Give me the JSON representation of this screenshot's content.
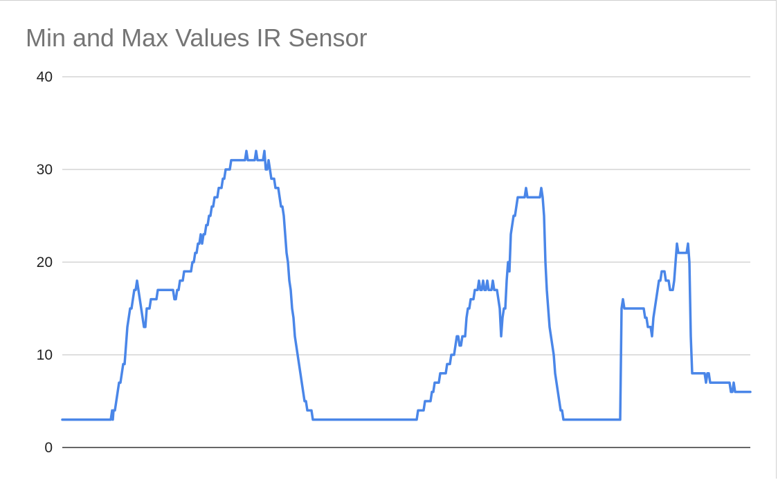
{
  "chart_data": {
    "type": "line",
    "title": "Min and Max Values IR Sensor",
    "xlabel": "",
    "ylabel": "",
    "ylim": [
      0,
      40
    ],
    "yticks": [
      "0",
      "10",
      "20",
      "30",
      "40"
    ],
    "grid": true,
    "legend": "none",
    "line_color": "#4a86e8",
    "series": [
      {
        "points": [
          [
            0,
            3
          ],
          [
            70,
            3
          ],
          [
            72,
            4
          ],
          [
            73,
            3
          ],
          [
            74,
            4
          ],
          [
            76,
            4
          ],
          [
            78,
            5
          ],
          [
            80,
            6
          ],
          [
            82,
            7
          ],
          [
            84,
            7
          ],
          [
            86,
            8
          ],
          [
            88,
            9
          ],
          [
            90,
            9
          ],
          [
            92,
            11
          ],
          [
            94,
            13
          ],
          [
            96,
            14
          ],
          [
            98,
            15
          ],
          [
            100,
            15
          ],
          [
            102,
            16
          ],
          [
            104,
            17
          ],
          [
            106,
            17
          ],
          [
            108,
            18
          ],
          [
            110,
            17
          ],
          [
            112,
            16
          ],
          [
            114,
            15
          ],
          [
            116,
            14
          ],
          [
            118,
            13
          ],
          [
            120,
            13
          ],
          [
            122,
            15
          ],
          [
            124,
            15
          ],
          [
            126,
            15
          ],
          [
            128,
            16
          ],
          [
            130,
            16
          ],
          [
            132,
            16
          ],
          [
            134,
            16
          ],
          [
            136,
            16
          ],
          [
            138,
            17
          ],
          [
            140,
            17
          ],
          [
            142,
            17
          ],
          [
            146,
            17
          ],
          [
            150,
            17
          ],
          [
            154,
            17
          ],
          [
            158,
            17
          ],
          [
            160,
            17
          ],
          [
            162,
            16
          ],
          [
            164,
            16
          ],
          [
            166,
            17
          ],
          [
            168,
            17
          ],
          [
            170,
            18
          ],
          [
            172,
            18
          ],
          [
            174,
            18
          ],
          [
            176,
            19
          ],
          [
            178,
            19
          ],
          [
            180,
            19
          ],
          [
            182,
            19
          ],
          [
            184,
            19
          ],
          [
            186,
            19
          ],
          [
            188,
            20
          ],
          [
            190,
            20
          ],
          [
            192,
            21
          ],
          [
            194,
            21
          ],
          [
            196,
            22
          ],
          [
            198,
            22
          ],
          [
            200,
            23
          ],
          [
            202,
            22
          ],
          [
            204,
            23
          ],
          [
            206,
            23
          ],
          [
            208,
            24
          ],
          [
            210,
            24
          ],
          [
            212,
            25
          ],
          [
            214,
            25
          ],
          [
            216,
            26
          ],
          [
            218,
            26
          ],
          [
            220,
            27
          ],
          [
            222,
            27
          ],
          [
            224,
            27
          ],
          [
            226,
            28
          ],
          [
            228,
            28
          ],
          [
            230,
            28
          ],
          [
            232,
            29
          ],
          [
            234,
            29
          ],
          [
            236,
            30
          ],
          [
            238,
            30
          ],
          [
            240,
            30
          ],
          [
            242,
            30
          ],
          [
            244,
            31
          ],
          [
            246,
            31
          ],
          [
            250,
            31
          ],
          [
            254,
            31
          ],
          [
            258,
            31
          ],
          [
            264,
            31
          ],
          [
            266,
            32
          ],
          [
            268,
            31
          ],
          [
            270,
            31
          ],
          [
            272,
            31
          ],
          [
            274,
            31
          ],
          [
            276,
            31
          ],
          [
            278,
            31
          ],
          [
            280,
            32
          ],
          [
            282,
            31
          ],
          [
            284,
            31
          ],
          [
            286,
            31
          ],
          [
            288,
            31
          ],
          [
            290,
            31
          ],
          [
            292,
            32
          ],
          [
            294,
            30
          ],
          [
            296,
            30
          ],
          [
            298,
            31
          ],
          [
            300,
            30
          ],
          [
            302,
            29
          ],
          [
            304,
            29
          ],
          [
            306,
            29
          ],
          [
            308,
            28
          ],
          [
            310,
            28
          ],
          [
            312,
            28
          ],
          [
            314,
            27
          ],
          [
            316,
            26
          ],
          [
            318,
            26
          ],
          [
            320,
            25
          ],
          [
            322,
            23
          ],
          [
            324,
            21
          ],
          [
            326,
            20
          ],
          [
            328,
            18
          ],
          [
            330,
            17
          ],
          [
            332,
            15
          ],
          [
            334,
            14
          ],
          [
            336,
            12
          ],
          [
            338,
            11
          ],
          [
            340,
            10
          ],
          [
            342,
            9
          ],
          [
            344,
            8
          ],
          [
            346,
            7
          ],
          [
            348,
            6
          ],
          [
            350,
            5
          ],
          [
            352,
            5
          ],
          [
            354,
            4
          ],
          [
            356,
            4
          ],
          [
            358,
            4
          ],
          [
            360,
            4
          ],
          [
            362,
            3
          ],
          [
            364,
            3
          ],
          [
            380,
            3
          ],
          [
            420,
            3
          ],
          [
            460,
            3
          ],
          [
            500,
            3
          ],
          [
            512,
            3
          ],
          [
            514,
            4
          ],
          [
            516,
            4
          ],
          [
            518,
            4
          ],
          [
            520,
            4
          ],
          [
            522,
            4
          ],
          [
            524,
            5
          ],
          [
            526,
            5
          ],
          [
            528,
            5
          ],
          [
            530,
            5
          ],
          [
            532,
            5
          ],
          [
            534,
            6
          ],
          [
            536,
            6
          ],
          [
            538,
            7
          ],
          [
            540,
            7
          ],
          [
            542,
            7
          ],
          [
            544,
            7
          ],
          [
            546,
            8
          ],
          [
            548,
            8
          ],
          [
            550,
            8
          ],
          [
            552,
            8
          ],
          [
            554,
            8
          ],
          [
            556,
            9
          ],
          [
            558,
            9
          ],
          [
            560,
            9
          ],
          [
            562,
            10
          ],
          [
            564,
            10
          ],
          [
            566,
            10
          ],
          [
            568,
            11
          ],
          [
            570,
            12
          ],
          [
            572,
            12
          ],
          [
            574,
            11
          ],
          [
            576,
            11
          ],
          [
            578,
            12
          ],
          [
            580,
            12
          ],
          [
            582,
            12
          ],
          [
            584,
            14
          ],
          [
            586,
            15
          ],
          [
            588,
            15
          ],
          [
            590,
            16
          ],
          [
            592,
            16
          ],
          [
            594,
            16
          ],
          [
            596,
            17
          ],
          [
            598,
            17
          ],
          [
            600,
            17
          ],
          [
            602,
            18
          ],
          [
            604,
            17
          ],
          [
            606,
            17
          ],
          [
            608,
            18
          ],
          [
            610,
            17
          ],
          [
            612,
            17
          ],
          [
            614,
            18
          ],
          [
            616,
            17
          ],
          [
            618,
            17
          ],
          [
            620,
            17
          ],
          [
            622,
            18
          ],
          [
            624,
            17
          ],
          [
            626,
            17
          ],
          [
            628,
            17
          ],
          [
            630,
            16
          ],
          [
            632,
            15
          ],
          [
            634,
            12
          ],
          [
            636,
            14
          ],
          [
            638,
            15
          ],
          [
            640,
            15
          ],
          [
            642,
            18
          ],
          [
            644,
            20
          ],
          [
            646,
            19
          ],
          [
            648,
            23
          ],
          [
            650,
            24
          ],
          [
            652,
            25
          ],
          [
            654,
            25
          ],
          [
            656,
            26
          ],
          [
            658,
            27
          ],
          [
            660,
            27
          ],
          [
            664,
            27
          ],
          [
            668,
            27
          ],
          [
            670,
            28
          ],
          [
            672,
            27
          ],
          [
            676,
            27
          ],
          [
            680,
            27
          ],
          [
            684,
            27
          ],
          [
            688,
            27
          ],
          [
            690,
            27
          ],
          [
            692,
            28
          ],
          [
            694,
            27
          ],
          [
            696,
            25
          ],
          [
            698,
            20
          ],
          [
            700,
            17
          ],
          [
            702,
            15
          ],
          [
            704,
            13
          ],
          [
            706,
            12
          ],
          [
            708,
            11
          ],
          [
            710,
            10
          ],
          [
            712,
            8
          ],
          [
            714,
            7
          ],
          [
            716,
            6
          ],
          [
            718,
            5
          ],
          [
            720,
            4
          ],
          [
            722,
            4
          ],
          [
            724,
            3
          ],
          [
            726,
            3
          ],
          [
            760,
            3
          ],
          [
            800,
            3
          ],
          [
            806,
            3
          ],
          [
            808,
            15
          ],
          [
            810,
            16
          ],
          [
            812,
            15
          ],
          [
            814,
            15
          ],
          [
            820,
            15
          ],
          [
            826,
            15
          ],
          [
            830,
            15
          ],
          [
            836,
            15
          ],
          [
            840,
            15
          ],
          [
            842,
            14
          ],
          [
            844,
            14
          ],
          [
            846,
            13
          ],
          [
            848,
            13
          ],
          [
            850,
            13
          ],
          [
            852,
            12
          ],
          [
            854,
            14
          ],
          [
            856,
            15
          ],
          [
            858,
            16
          ],
          [
            860,
            17
          ],
          [
            862,
            18
          ],
          [
            864,
            18
          ],
          [
            866,
            19
          ],
          [
            868,
            19
          ],
          [
            870,
            19
          ],
          [
            872,
            18
          ],
          [
            874,
            18
          ],
          [
            876,
            18
          ],
          [
            878,
            17
          ],
          [
            880,
            17
          ],
          [
            882,
            17
          ],
          [
            884,
            18
          ],
          [
            886,
            20
          ],
          [
            888,
            22
          ],
          [
            890,
            21
          ],
          [
            894,
            21
          ],
          [
            898,
            21
          ],
          [
            902,
            21
          ],
          [
            904,
            22
          ],
          [
            906,
            20
          ],
          [
            908,
            12
          ],
          [
            910,
            8
          ],
          [
            912,
            8
          ],
          [
            916,
            8
          ],
          [
            920,
            8
          ],
          [
            924,
            8
          ],
          [
            928,
            8
          ],
          [
            930,
            7
          ],
          [
            932,
            8
          ],
          [
            934,
            8
          ],
          [
            936,
            7
          ],
          [
            940,
            7
          ],
          [
            946,
            7
          ],
          [
            952,
            7
          ],
          [
            958,
            7
          ],
          [
            962,
            7
          ],
          [
            964,
            7
          ],
          [
            966,
            6
          ],
          [
            968,
            6
          ],
          [
            970,
            7
          ],
          [
            972,
            6
          ],
          [
            976,
            6
          ],
          [
            980,
            6
          ],
          [
            986,
            6
          ],
          [
            992,
            6
          ],
          [
            994,
            6
          ]
        ]
      }
    ]
  }
}
